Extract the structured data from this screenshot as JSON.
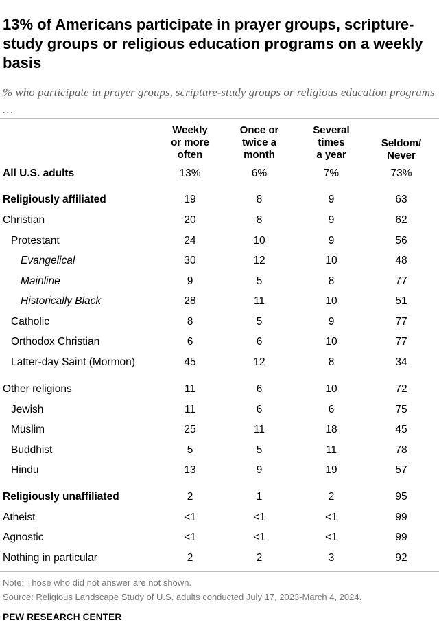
{
  "title": "13% of Americans participate in prayer groups, scripture-study groups or religious education programs on a weekly basis",
  "subtitle": "% who participate in prayer groups, scripture-study groups or religious education programs …",
  "columns": [
    {
      "line1": "Weekly",
      "line2": "or more",
      "line3": "often"
    },
    {
      "line1": "Once or",
      "line2": "twice a",
      "line3": "month"
    },
    {
      "line1": "Several",
      "line2": "times",
      "line3": "a year"
    },
    {
      "line1": "Seldom/",
      "line2": "Never",
      "line3": ""
    }
  ],
  "rows": [
    {
      "label": "All U.S. adults",
      "values": [
        "13%",
        "6%",
        "7%",
        "73%"
      ]
    },
    {
      "label": "Religiously affiliated",
      "values": [
        "19",
        "8",
        "9",
        "63"
      ]
    },
    {
      "label": "Christian",
      "values": [
        "20",
        "8",
        "9",
        "62"
      ]
    },
    {
      "label": "Protestant",
      "values": [
        "24",
        "10",
        "9",
        "56"
      ]
    },
    {
      "label": "Evangelical",
      "values": [
        "30",
        "12",
        "10",
        "48"
      ]
    },
    {
      "label": "Mainline",
      "values": [
        "9",
        "5",
        "8",
        "77"
      ]
    },
    {
      "label": "Historically Black",
      "values": [
        "28",
        "11",
        "10",
        "51"
      ]
    },
    {
      "label": "Catholic",
      "values": [
        "8",
        "5",
        "9",
        "77"
      ]
    },
    {
      "label": "Orthodox Christian",
      "values": [
        "6",
        "6",
        "10",
        "77"
      ]
    },
    {
      "label": "Latter-day Saint (Mormon)",
      "values": [
        "45",
        "12",
        "8",
        "34"
      ]
    },
    {
      "label": "Other religions",
      "values": [
        "11",
        "6",
        "10",
        "72"
      ]
    },
    {
      "label": "Jewish",
      "values": [
        "11",
        "6",
        "6",
        "75"
      ]
    },
    {
      "label": "Muslim",
      "values": [
        "25",
        "11",
        "18",
        "45"
      ]
    },
    {
      "label": "Buddhist",
      "values": [
        "5",
        "5",
        "11",
        "78"
      ]
    },
    {
      "label": "Hindu",
      "values": [
        "13",
        "9",
        "19",
        "57"
      ]
    },
    {
      "label": "Religiously unaffiliated",
      "values": [
        "2",
        "1",
        "2",
        "95"
      ]
    },
    {
      "label": "Atheist",
      "values": [
        "<1",
        "<1",
        "<1",
        "99"
      ]
    },
    {
      "label": "Agnostic",
      "values": [
        "<1",
        "<1",
        "<1",
        "99"
      ]
    },
    {
      "label": "Nothing in particular",
      "values": [
        "2",
        "2",
        "3",
        "92"
      ]
    }
  ],
  "note": "Note: Those who did not answer are not shown.",
  "source": "Source: Religious Landscape Study of U.S. adults conducted July 17, 2023-March 4, 2024.",
  "brand": "PEW RESEARCH CENTER",
  "chart_data": {
    "type": "table",
    "title": "13% of Americans participate in prayer groups, scripture-study groups or religious education programs on a weekly basis",
    "subtitle": "% who participate in prayer groups, scripture-study groups or religious education programs …",
    "columns": [
      "Weekly or more often",
      "Once or twice a month",
      "Several times a year",
      "Seldom/ Never"
    ],
    "rows": [
      {
        "label": "All U.S. adults",
        "values": [
          "13%",
          "6%",
          "7%",
          "73%"
        ]
      },
      {
        "label": "Religiously affiliated",
        "values": [
          "19",
          "8",
          "9",
          "63"
        ]
      },
      {
        "label": "Christian",
        "values": [
          "20",
          "8",
          "9",
          "62"
        ]
      },
      {
        "label": "Protestant",
        "values": [
          "24",
          "10",
          "9",
          "56"
        ]
      },
      {
        "label": "Evangelical",
        "values": [
          "30",
          "12",
          "10",
          "48"
        ]
      },
      {
        "label": "Mainline",
        "values": [
          "9",
          "5",
          "8",
          "77"
        ]
      },
      {
        "label": "Historically Black",
        "values": [
          "28",
          "11",
          "10",
          "51"
        ]
      },
      {
        "label": "Catholic",
        "values": [
          "8",
          "5",
          "9",
          "77"
        ]
      },
      {
        "label": "Orthodox Christian",
        "values": [
          "6",
          "6",
          "10",
          "77"
        ]
      },
      {
        "label": "Latter-day Saint (Mormon)",
        "values": [
          "45",
          "12",
          "8",
          "34"
        ]
      },
      {
        "label": "Other religions",
        "values": [
          "11",
          "6",
          "10",
          "72"
        ]
      },
      {
        "label": "Jewish",
        "values": [
          "11",
          "6",
          "6",
          "75"
        ]
      },
      {
        "label": "Muslim",
        "values": [
          "25",
          "11",
          "18",
          "45"
        ]
      },
      {
        "label": "Buddhist",
        "values": [
          "5",
          "5",
          "11",
          "78"
        ]
      },
      {
        "label": "Hindu",
        "values": [
          "13",
          "9",
          "19",
          "57"
        ]
      },
      {
        "label": "Religiously unaffiliated",
        "values": [
          "2",
          "1",
          "2",
          "95"
        ]
      },
      {
        "label": "Atheist",
        "values": [
          "<1",
          "<1",
          "<1",
          "99"
        ]
      },
      {
        "label": "Agnostic",
        "values": [
          "<1",
          "<1",
          "<1",
          "99"
        ]
      },
      {
        "label": "Nothing in particular",
        "values": [
          "2",
          "2",
          "3",
          "92"
        ]
      }
    ]
  }
}
